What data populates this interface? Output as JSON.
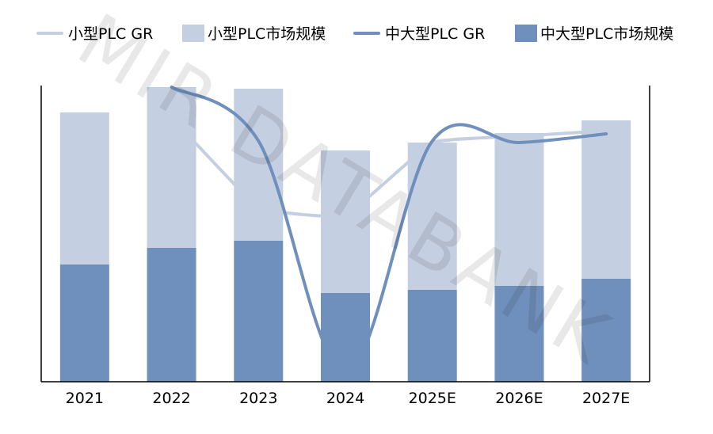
{
  "chart_data": {
    "type": "bar",
    "stacked": true,
    "title": "",
    "xlabel": "",
    "ylabel": "",
    "categories": [
      "2021",
      "2022",
      "2023",
      "2024",
      "2025E",
      "2026E",
      "2027E"
    ],
    "ylim": [
      0,
      374
    ],
    "grid": false,
    "legend_position": "top",
    "watermark": "MIR DATABANK",
    "series": [
      {
        "name": "中大型PLC市场规模",
        "kind": "bar",
        "color": "#6f8fbc",
        "values": [
          148,
          169,
          178,
          112,
          116,
          121,
          130
        ]
      },
      {
        "name": "小型PLC市场规模",
        "kind": "bar",
        "color": "#c4cfe2",
        "values": [
          192,
          203,
          192,
          180,
          186,
          193,
          200
        ]
      },
      {
        "name": "小型PLC GR",
        "kind": "line",
        "color": "#c4cfe2",
        "values": [
          null,
          334,
          220,
          210,
          302,
          310,
          317
        ]
      },
      {
        "name": "中大型PLC GR",
        "kind": "line",
        "color": "#6f8fbc",
        "values": [
          null,
          372,
          304,
          12,
          304,
          302,
          313
        ]
      }
    ],
    "legend_order": [
      "小型PLC GR",
      "小型PLC市场规模",
      "中大型PLC GR",
      "中大型PLC市场规模"
    ]
  }
}
